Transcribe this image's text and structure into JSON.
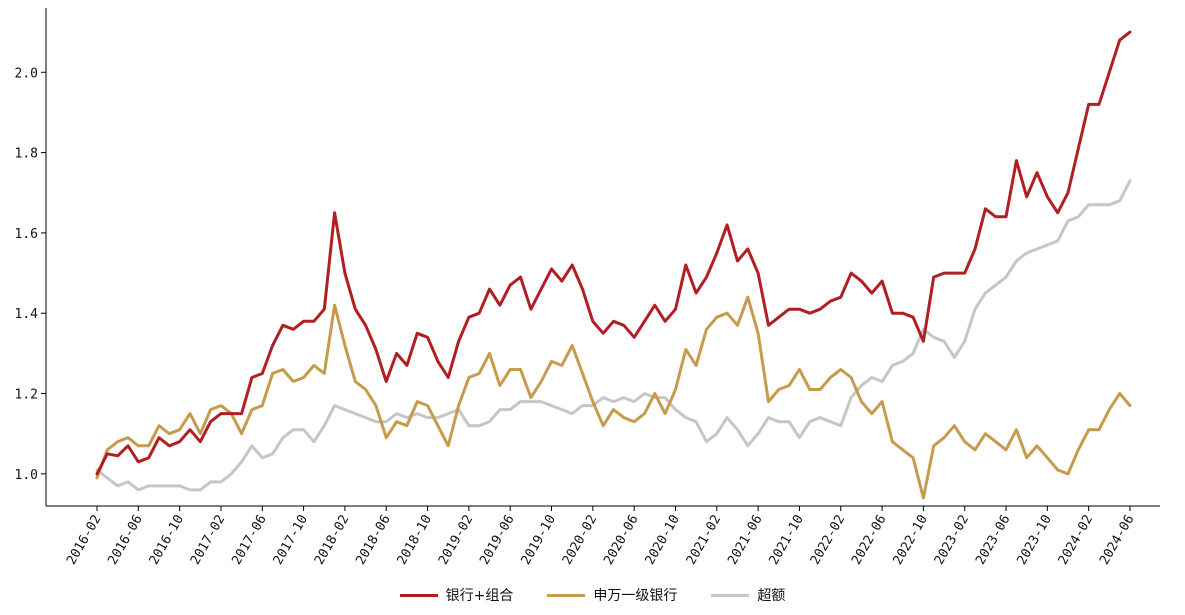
{
  "chart_data": {
    "type": "line",
    "title": "",
    "xlabel": "",
    "ylabel": "",
    "ylim": [
      0.92,
      2.16
    ],
    "yticks": [
      "1.0",
      "1.2",
      "1.4",
      "1.6",
      "1.8",
      "2.0"
    ],
    "grid": false,
    "legend_position": "bottom-center",
    "xtick_labels": [
      "2016-02",
      "2016-06",
      "2016-10",
      "2017-02",
      "2017-06",
      "2017-10",
      "2018-02",
      "2018-06",
      "2018-10",
      "2019-02",
      "2019-06",
      "2019-10",
      "2020-02",
      "2020-06",
      "2020-10",
      "2021-02",
      "2021-06",
      "2021-10",
      "2022-02",
      "2022-06",
      "2022-10",
      "2023-02",
      "2023-06",
      "2023-10",
      "2024-02",
      "2024-06"
    ],
    "x_start": "2016-02",
    "series": [
      {
        "name": "银行+组合",
        "color": "#b01f24",
        "values": [
          1.0,
          1.05,
          1.045,
          1.07,
          1.03,
          1.04,
          1.09,
          1.07,
          1.08,
          1.11,
          1.08,
          1.13,
          1.15,
          1.15,
          1.15,
          1.24,
          1.25,
          1.32,
          1.37,
          1.36,
          1.38,
          1.38,
          1.41,
          1.65,
          1.5,
          1.41,
          1.37,
          1.31,
          1.23,
          1.3,
          1.27,
          1.35,
          1.34,
          1.28,
          1.24,
          1.33,
          1.39,
          1.4,
          1.46,
          1.42,
          1.47,
          1.49,
          1.41,
          1.46,
          1.51,
          1.48,
          1.52,
          1.46,
          1.38,
          1.35,
          1.38,
          1.37,
          1.34,
          1.38,
          1.42,
          1.38,
          1.41,
          1.52,
          1.45,
          1.49,
          1.55,
          1.62,
          1.53,
          1.56,
          1.5,
          1.37,
          1.39,
          1.41,
          1.41,
          1.4,
          1.41,
          1.43,
          1.44,
          1.5,
          1.48,
          1.45,
          1.48,
          1.4,
          1.4,
          1.39,
          1.33,
          1.49,
          1.5,
          1.5,
          1.5,
          1.56,
          1.66,
          1.64,
          1.64,
          1.78,
          1.69,
          1.75,
          1.69,
          1.65,
          1.7,
          1.81,
          1.92,
          1.92,
          2.0,
          2.08,
          2.1
        ]
      },
      {
        "name": "申万一级银行",
        "color": "#c69b4d",
        "values": [
          0.99,
          1.06,
          1.08,
          1.09,
          1.07,
          1.07,
          1.12,
          1.1,
          1.11,
          1.15,
          1.1,
          1.16,
          1.17,
          1.15,
          1.1,
          1.16,
          1.17,
          1.25,
          1.26,
          1.23,
          1.24,
          1.27,
          1.25,
          1.42,
          1.32,
          1.23,
          1.21,
          1.17,
          1.09,
          1.13,
          1.12,
          1.18,
          1.17,
          1.12,
          1.07,
          1.17,
          1.24,
          1.25,
          1.3,
          1.22,
          1.26,
          1.26,
          1.19,
          1.23,
          1.28,
          1.27,
          1.32,
          1.25,
          1.18,
          1.12,
          1.16,
          1.14,
          1.13,
          1.15,
          1.2,
          1.15,
          1.21,
          1.31,
          1.27,
          1.36,
          1.39,
          1.4,
          1.37,
          1.44,
          1.35,
          1.18,
          1.21,
          1.22,
          1.26,
          1.21,
          1.21,
          1.24,
          1.26,
          1.24,
          1.18,
          1.15,
          1.18,
          1.08,
          1.06,
          1.04,
          0.94,
          1.07,
          1.09,
          1.12,
          1.08,
          1.06,
          1.1,
          1.08,
          1.06,
          1.11,
          1.04,
          1.07,
          1.04,
          1.01,
          1.0,
          1.06,
          1.11,
          1.11,
          1.16,
          1.2,
          1.17
        ]
      },
      {
        "name": "超额",
        "color": "#c6c6c6",
        "values": [
          1.01,
          0.99,
          0.97,
          0.98,
          0.96,
          0.97,
          0.97,
          0.97,
          0.97,
          0.96,
          0.96,
          0.98,
          0.98,
          1.0,
          1.03,
          1.07,
          1.04,
          1.05,
          1.09,
          1.11,
          1.11,
          1.08,
          1.12,
          1.17,
          1.16,
          1.15,
          1.14,
          1.13,
          1.13,
          1.15,
          1.14,
          1.15,
          1.14,
          1.14,
          1.15,
          1.16,
          1.12,
          1.12,
          1.13,
          1.16,
          1.16,
          1.18,
          1.18,
          1.18,
          1.17,
          1.16,
          1.15,
          1.17,
          1.17,
          1.19,
          1.18,
          1.19,
          1.18,
          1.2,
          1.19,
          1.19,
          1.16,
          1.14,
          1.13,
          1.08,
          1.1,
          1.14,
          1.11,
          1.07,
          1.1,
          1.14,
          1.13,
          1.13,
          1.09,
          1.13,
          1.14,
          1.13,
          1.12,
          1.19,
          1.22,
          1.24,
          1.23,
          1.27,
          1.28,
          1.3,
          1.36,
          1.34,
          1.33,
          1.29,
          1.33,
          1.41,
          1.45,
          1.47,
          1.49,
          1.53,
          1.55,
          1.56,
          1.57,
          1.58,
          1.63,
          1.64,
          1.67,
          1.67,
          1.67,
          1.68,
          1.73
        ]
      }
    ]
  }
}
